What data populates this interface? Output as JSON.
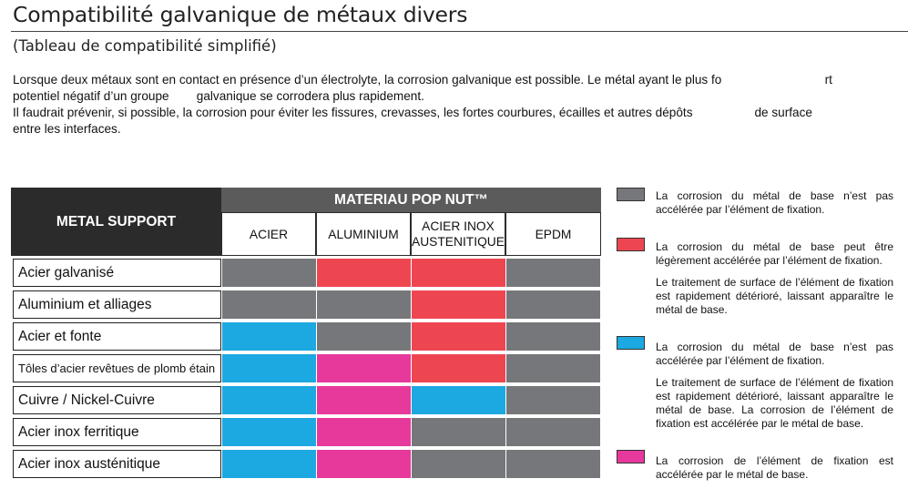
{
  "title": "Compatibilité galvanique de métaux divers",
  "subtitle": "(Tableau de compatibilité simplifié)",
  "intro": {
    "line1": "Lorsque deux métaux sont en contact en présence d’un électrolyte, la corrosion galvanique est possible. Le métal ayant le plus fo                              rt",
    "line2": "potentiel négatif d’un groupe        galvanique se corrodera plus rapidement.",
    "line3": "Il faudrait prévenir, si possible, la corrosion pour éviter les fissures, crevasses, les fortes courbures, écailles et autres dépôts                  de surface",
    "line4": "entre les interfaces."
  },
  "colors": {
    "grey": "#76777b",
    "red": "#ee4651",
    "blue": "#1ca8e0",
    "magenta": "#e6399b"
  },
  "table": {
    "row_header": "METAL SUPPORT",
    "group_header": "MATERIAU POP NUT™",
    "columns": [
      "ACIER",
      "ALUMINIUM",
      "ACIER INOX AUSTENITIQUE",
      "EPDM"
    ],
    "rows": [
      {
        "label": "Acier galvanisé",
        "cells": [
          "grey",
          "red",
          "red",
          "grey"
        ]
      },
      {
        "label": "Aluminium et alliages",
        "cells": [
          "grey",
          "grey",
          "red",
          "grey"
        ]
      },
      {
        "label": "Acier et fonte",
        "cells": [
          "blue",
          "grey",
          "red",
          "grey"
        ]
      },
      {
        "label": "Tôles d’acier revêtues de plomb étain",
        "cells": [
          "blue",
          "magenta",
          "red",
          "grey"
        ]
      },
      {
        "label": "Cuivre / Nickel-Cuivre",
        "cells": [
          "blue",
          "magenta",
          "blue",
          "grey"
        ]
      },
      {
        "label": "Acier inox ferritique",
        "cells": [
          "blue",
          "magenta",
          "grey",
          "grey"
        ]
      },
      {
        "label": "Acier inox austénitique",
        "cells": [
          "blue",
          "magenta",
          "grey",
          "grey"
        ]
      }
    ]
  },
  "legend": [
    {
      "color": "grey",
      "texts": [
        "La corrosion du métal de base n’est pas accélérée par l’élément de fixation."
      ]
    },
    {
      "color": "red",
      "texts": [
        "La corrosion du métal de base peut être légèrement accélérée par l’élément de fixation.",
        "Le traitement de surface de l’élément de fixation est rapidement détérioré, laissant apparaître le métal de base."
      ]
    },
    {
      "color": "blue",
      "texts": [
        "La corrosion du métal de base n’est pas accélérée par l’élément de fixation.",
        "Le traitement de surface de l’élément de fixation est rapidement détérioré, laissant apparaître le métal de base. La corrosion de l’élément de fixation est accélérée par le métal de base."
      ]
    },
    {
      "color": "magenta",
      "texts": [
        "La corrosion de l’élément de fixation est accélérée par le métal de base."
      ]
    }
  ]
}
